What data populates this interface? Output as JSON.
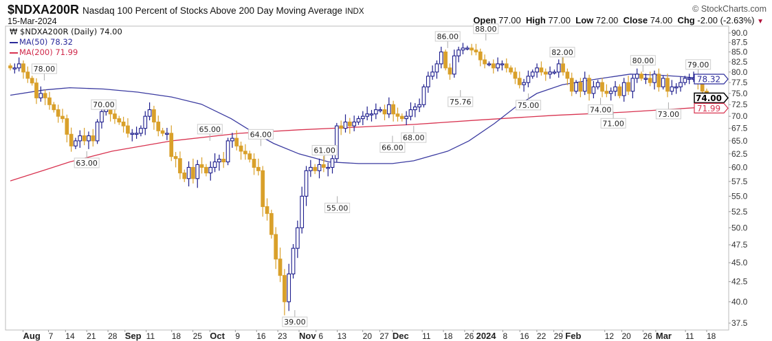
{
  "header": {
    "symbol": "$NDXA200R",
    "name": "Nasdaq 100 Percent of Stocks Above 200 Day Moving Average",
    "exchange": "INDX",
    "date": "15-Mar-2024",
    "copyright": "© StockCharts.com",
    "open_label": "Open",
    "open": "77.00",
    "high_label": "High",
    "high": "77.00",
    "low_label": "Low",
    "low": "72.00",
    "close_label": "Close",
    "close": "74.00",
    "chg_label": "Chg",
    "chg": "-2.00 (-2.63%)"
  },
  "legend": {
    "price": "$NDXA200R (Daily) 74.00",
    "ma50": "MA(50) 78.32",
    "ma200": "MA(200) 71.99"
  },
  "colors": {
    "up": "#1c1c8c",
    "down": "#d9a02a",
    "ma50": "#3a3aa0",
    "ma200": "#d8324f",
    "last": "#000000"
  },
  "chart_data": {
    "type": "candlestick",
    "title": "$NDXA200R Nasdaq 100 Percent of Stocks Above 200 Day Moving Average",
    "scale": "log",
    "ylim": [
      37.5,
      90
    ],
    "yticks": [
      "90.0",
      "87.5",
      "85.0",
      "82.5",
      "80.0",
      "77.5",
      "75.0",
      "72.5",
      "70.0",
      "67.5",
      "65.0",
      "62.5",
      "60.0",
      "57.5",
      "55.0",
      "52.5",
      "50.0",
      "47.5",
      "45.0",
      "42.5",
      "40.0",
      "37.5"
    ],
    "xdomain": [
      0,
      164
    ],
    "xticks": [
      {
        "label": "Aug",
        "i": 3,
        "bold": true
      },
      {
        "label": "7",
        "i": 9
      },
      {
        "label": "14",
        "i": 13
      },
      {
        "label": "21",
        "i": 18
      },
      {
        "label": "28",
        "i": 23
      },
      {
        "label": "Sep",
        "i": 27,
        "bold": true
      },
      {
        "label": "11",
        "i": 32
      },
      {
        "label": "18",
        "i": 38
      },
      {
        "label": "25",
        "i": 43
      },
      {
        "label": "Oct",
        "i": 47,
        "bold": true
      },
      {
        "label": "9",
        "i": 53
      },
      {
        "label": "16",
        "i": 58
      },
      {
        "label": "23",
        "i": 63
      },
      {
        "label": "Nov",
        "i": 68,
        "bold": true
      },
      {
        "label": "6",
        "i": 72
      },
      {
        "label": "13",
        "i": 77
      },
      {
        "label": "20",
        "i": 83
      },
      {
        "label": "27",
        "i": 87
      },
      {
        "label": "Dec",
        "i": 90,
        "bold": true
      },
      {
        "label": "11",
        "i": 97
      },
      {
        "label": "18",
        "i": 102
      },
      {
        "label": "26",
        "i": 107
      },
      {
        "label": "2024",
        "i": 109,
        "bold": true
      },
      {
        "label": "8",
        "i": 116
      },
      {
        "label": "16",
        "i": 120
      },
      {
        "label": "22",
        "i": 124
      },
      {
        "label": "29",
        "i": 128
      },
      {
        "label": "Feb",
        "i": 130,
        "bold": true
      },
      {
        "label": "12",
        "i": 140
      },
      {
        "label": "20",
        "i": 144
      },
      {
        "label": "26",
        "i": 149
      },
      {
        "label": "Mar",
        "i": 152,
        "bold": true
      },
      {
        "label": "11",
        "i": 159
      },
      {
        "label": "18",
        "i": 164
      }
    ],
    "closes": [
      81,
      81,
      82,
      80,
      78.5,
      77.4,
      74,
      75,
      74,
      72.5,
      71.4,
      70,
      69.5,
      66.3,
      64,
      65,
      66,
      65,
      66,
      65,
      68.8,
      71,
      72,
      70.5,
      69.5,
      68.8,
      68,
      66.5,
      66.5,
      66.5,
      67.5,
      70,
      71.4,
      68.8,
      67,
      66.5,
      66.5,
      62,
      61.6,
      59,
      58,
      60,
      58,
      60.5,
      60,
      59,
      60,
      61,
      61.5,
      61,
      65,
      65.5,
      64,
      63,
      62.5,
      61.5,
      60,
      59.4,
      53.3,
      52.2,
      49,
      45.5,
      43.3,
      40,
      43.5,
      47,
      50,
      55,
      59.4,
      60,
      59.4,
      60.5,
      60,
      60,
      61.6,
      68,
      67.5,
      68.8,
      68,
      68.8,
      69.5,
      70,
      70.5,
      70.5,
      71.4,
      71.4,
      70.5,
      72.5,
      70.5,
      70,
      69.5,
      70,
      71.4,
      72,
      72.5,
      76.5,
      79,
      80,
      82,
      85,
      81,
      79.5,
      84,
      85.5,
      86,
      86,
      85.5,
      85,
      83,
      82,
      82,
      81,
      82,
      82,
      81,
      80,
      78.5,
      77,
      77.5,
      79,
      80,
      81,
      80,
      79.5,
      80,
      80,
      82,
      80,
      78.5,
      75.5,
      77.5,
      75.5,
      78.5,
      75,
      76.5,
      77.5,
      75.5,
      75,
      75.5,
      76.5,
      74.5,
      77.5,
      75.5,
      78.5,
      79.5,
      78.5,
      78.5,
      77.5,
      79.5,
      76.5,
      78.5,
      75.5,
      76.5,
      76.5,
      77.5,
      78.5,
      78.5,
      78.5,
      77.5,
      75.5,
      74
    ],
    "ma50": [
      [
        0,
        74.6
      ],
      [
        8,
        75.8
      ],
      [
        14,
        76.3
      ],
      [
        22,
        76
      ],
      [
        30,
        75.3
      ],
      [
        38,
        74.2
      ],
      [
        45,
        72.6
      ],
      [
        52,
        69.5
      ],
      [
        57,
        66.8
      ],
      [
        62,
        64.5
      ],
      [
        68,
        62.5
      ],
      [
        75,
        61
      ],
      [
        82,
        60.7
      ],
      [
        90,
        60.7
      ],
      [
        95,
        61.2
      ],
      [
        103,
        63
      ],
      [
        108,
        65
      ],
      [
        114,
        68.5
      ],
      [
        119,
        72
      ],
      [
        124,
        75
      ],
      [
        130,
        77
      ],
      [
        138,
        78.3
      ],
      [
        146,
        79.5
      ],
      [
        152,
        79.3
      ],
      [
        158,
        78.9
      ],
      [
        164,
        78.32
      ]
    ],
    "ma200": [
      [
        0,
        57.6
      ],
      [
        8,
        59.5
      ],
      [
        14,
        61
      ],
      [
        24,
        63
      ],
      [
        38,
        65
      ],
      [
        54,
        66.5
      ],
      [
        68,
        67.2
      ],
      [
        78,
        67.6
      ],
      [
        95,
        68.3
      ],
      [
        110,
        69.2
      ],
      [
        128,
        70.2
      ],
      [
        145,
        70.9
      ],
      [
        164,
        71.99
      ]
    ],
    "annotations": [
      {
        "text": "78.00",
        "i": 8,
        "v": 78,
        "pos": "above"
      },
      {
        "text": "63.00",
        "i": 18,
        "v": 63,
        "pos": "below"
      },
      {
        "text": "70.00",
        "i": 22,
        "v": 70,
        "pos": "above"
      },
      {
        "text": "65.00",
        "i": 47,
        "v": 65,
        "pos": "above"
      },
      {
        "text": "64.00",
        "i": 59,
        "v": 64,
        "pos": "above"
      },
      {
        "text": "39.00",
        "i": 67,
        "v": 39,
        "pos": "below"
      },
      {
        "text": "61.00",
        "i": 74,
        "v": 61,
        "pos": "above"
      },
      {
        "text": "55.00",
        "i": 77,
        "v": 55,
        "pos": "below"
      },
      {
        "text": "66.00",
        "i": 90,
        "v": 66,
        "pos": "below"
      },
      {
        "text": "68.00",
        "i": 95,
        "v": 68,
        "pos": "below"
      },
      {
        "text": "86.00",
        "i": 103,
        "v": 86,
        "pos": "above"
      },
      {
        "text": "75.76",
        "i": 106,
        "v": 75.76,
        "pos": "below"
      },
      {
        "text": "88.00",
        "i": 112,
        "v": 88,
        "pos": "above"
      },
      {
        "text": "75.00",
        "i": 122,
        "v": 75,
        "pos": "below"
      },
      {
        "text": "82.00",
        "i": 130,
        "v": 82,
        "pos": "above"
      },
      {
        "text": "74.00",
        "i": 139,
        "v": 74,
        "pos": "below"
      },
      {
        "text": "71.00",
        "i": 142,
        "v": 71,
        "pos": "below"
      },
      {
        "text": "80.00",
        "i": 149,
        "v": 80,
        "pos": "above"
      },
      {
        "text": "73.00",
        "i": 155,
        "v": 73,
        "pos": "below"
      },
      {
        "text": "79.00",
        "i": 162,
        "v": 79,
        "pos": "above"
      }
    ],
    "last_values": [
      {
        "text": "78.32",
        "v": 78.32,
        "color": "#2a2a9a",
        "bold": false
      },
      {
        "text": "74.00",
        "v": 74.0,
        "color": "#000000",
        "bold": true
      },
      {
        "text": "71.99",
        "v": 71.99,
        "color": "#d8324f",
        "bold": false
      }
    ]
  }
}
